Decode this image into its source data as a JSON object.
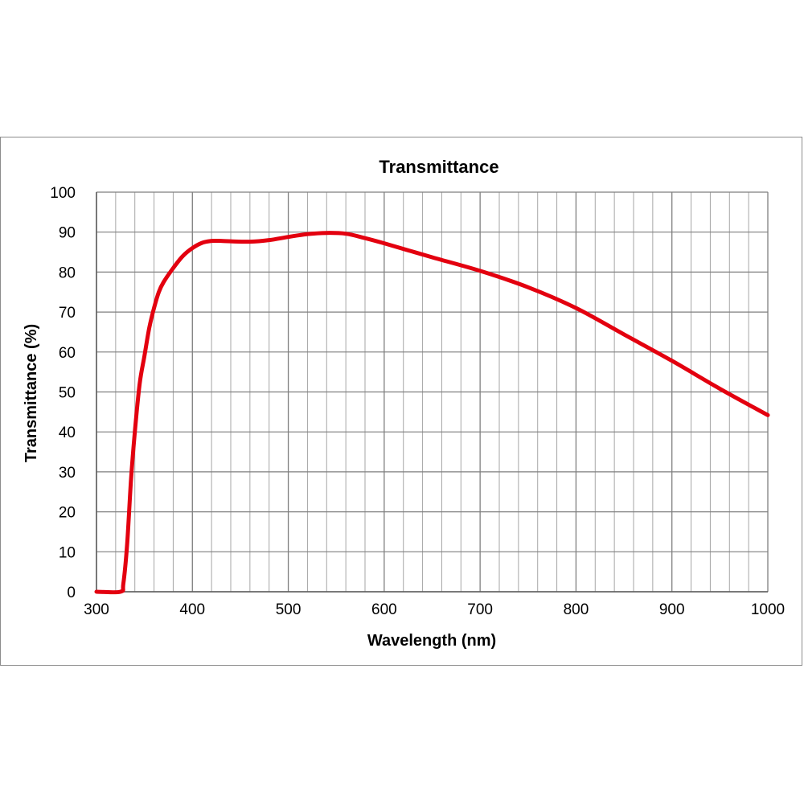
{
  "chart_data": {
    "type": "line",
    "title": "Transmittance",
    "xlabel": "Wavelength (nm)",
    "ylabel": "Transmittance (%)",
    "xlim": [
      300,
      1000
    ],
    "ylim": [
      0,
      100
    ],
    "x_ticks": [
      300,
      400,
      500,
      600,
      700,
      800,
      900,
      1000
    ],
    "y_ticks": [
      0,
      10,
      20,
      30,
      40,
      50,
      60,
      70,
      80,
      90,
      100
    ],
    "x_minor_step": 20,
    "grid": true,
    "legend": "none",
    "series": [
      {
        "name": "Transmittance",
        "color": "#e3000f",
        "x": [
          300,
          325,
          328,
          332,
          336,
          340,
          345,
          350,
          355,
          360,
          365,
          370,
          380,
          390,
          400,
          410,
          420,
          430,
          440,
          460,
          480,
          500,
          520,
          540,
          560,
          580,
          600,
          650,
          700,
          750,
          800,
          850,
          900,
          950,
          1000
        ],
        "y": [
          0,
          0,
          2,
          12,
          28,
          40,
          52,
          59,
          66,
          71,
          75,
          77.5,
          81,
          84,
          86,
          87.3,
          87.8,
          87.8,
          87.7,
          87.6,
          88,
          88.8,
          89.5,
          89.8,
          89.6,
          88.5,
          87.2,
          83.7,
          80.3,
          76.2,
          71,
          64.4,
          57.8,
          50.8,
          44.2
        ]
      }
    ]
  }
}
